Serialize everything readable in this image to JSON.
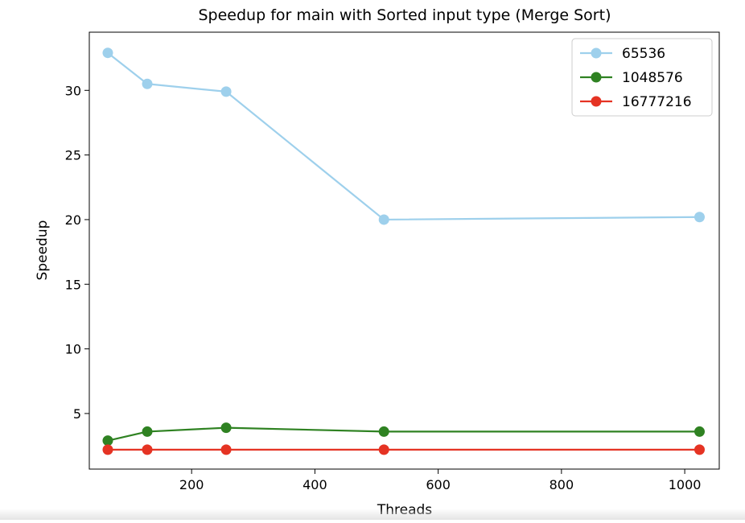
{
  "chart_data": {
    "type": "line",
    "title": "Speedup for main with Sorted input type (Merge Sort)",
    "xlabel": "Threads",
    "ylabel": "Speedup",
    "xlim": [
      34,
      1056
    ],
    "ylim": [
      0.7,
      34.5
    ],
    "xticks": [
      200,
      400,
      600,
      800,
      1000
    ],
    "yticks": [
      5,
      10,
      15,
      20,
      25,
      30
    ],
    "grid": false,
    "legend_position": "top-right",
    "x": [
      64,
      128,
      256,
      512,
      1024
    ],
    "series": [
      {
        "name": "65536",
        "color": "#9ed0ec",
        "values": [
          32.9,
          30.5,
          29.9,
          20.0,
          20.2
        ]
      },
      {
        "name": "1048576",
        "color": "#2f8222",
        "values": [
          2.9,
          3.6,
          3.9,
          3.6,
          3.6
        ]
      },
      {
        "name": "16777216",
        "color": "#e53323",
        "values": [
          2.2,
          2.2,
          2.2,
          2.2,
          2.2
        ]
      }
    ]
  }
}
